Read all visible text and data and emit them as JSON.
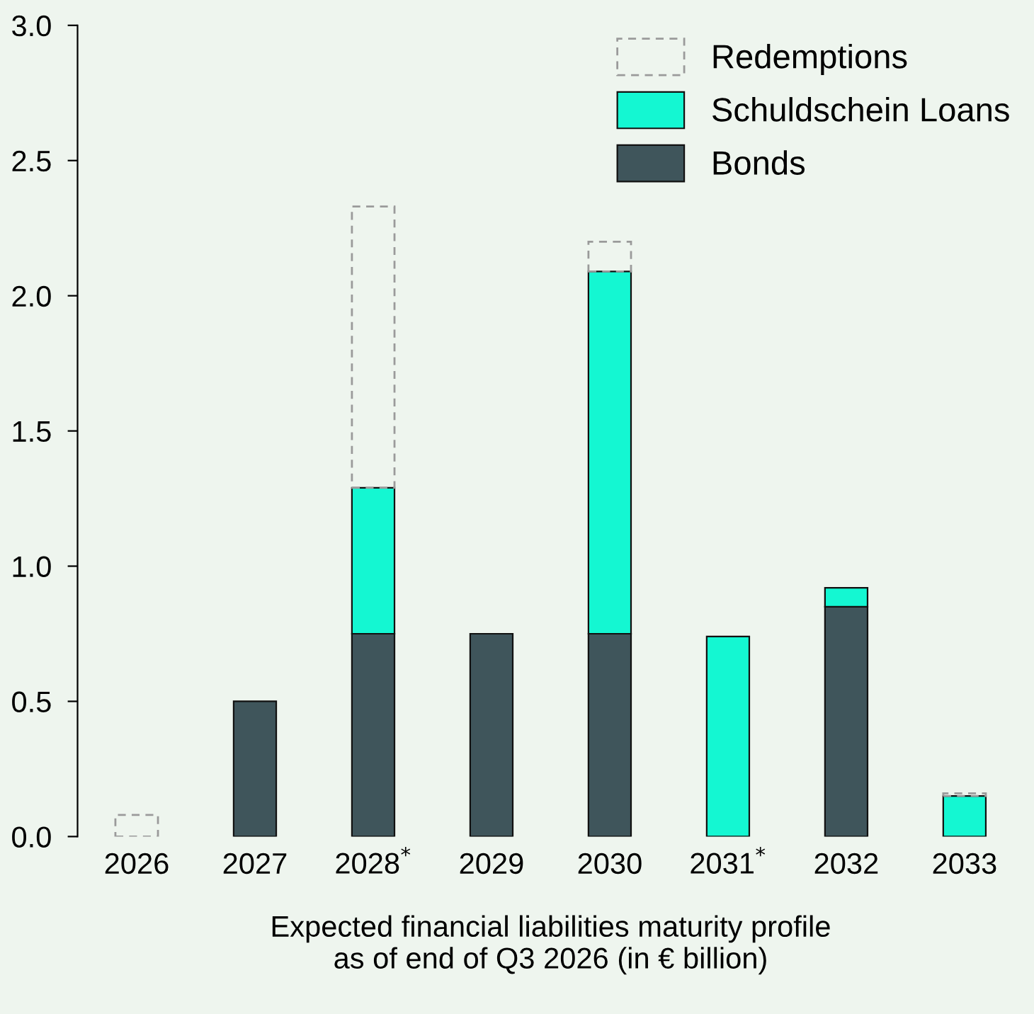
{
  "chart_data": {
    "type": "bar",
    "stacked": true,
    "xlabel": "Expected financial liabilities maturity profile\nas of end of Q3 2026 (in € billion)",
    "categories": [
      "2026",
      "2027",
      "2028$^{*}$",
      "2029",
      "2030",
      "2031$^{*}$",
      "2032",
      "2033"
    ],
    "series": [
      {
        "name": "Bonds",
        "color": "#3f555b",
        "values": [
          null,
          0.5,
          0.75,
          0.75,
          0.75,
          null,
          0.85,
          null
        ]
      },
      {
        "name": "Schuldschein Loans",
        "color": "#14f7d2",
        "values": [
          null,
          null,
          0.54,
          null,
          1.34,
          0.74,
          0.07,
          0.15
        ]
      },
      {
        "name": "Redemptions",
        "color": "#9a9a9a",
        "line_style": "dashed",
        "values": [
          0.08,
          null,
          1.04,
          null,
          0.11,
          null,
          null,
          0.01
        ]
      }
    ],
    "ylim": [
      0,
      3.0
    ],
    "yticks": [
      {
        "value": 0,
        "label": "0.0"
      },
      0.5,
      {
        "value": 1,
        "label": "1.0"
      },
      1.5,
      {
        "value": 2,
        "label": "2.0"
      },
      2.5,
      {
        "value": 3,
        "label": "3.0"
      }
    ],
    "legend": "top right",
    "grid": false
  }
}
